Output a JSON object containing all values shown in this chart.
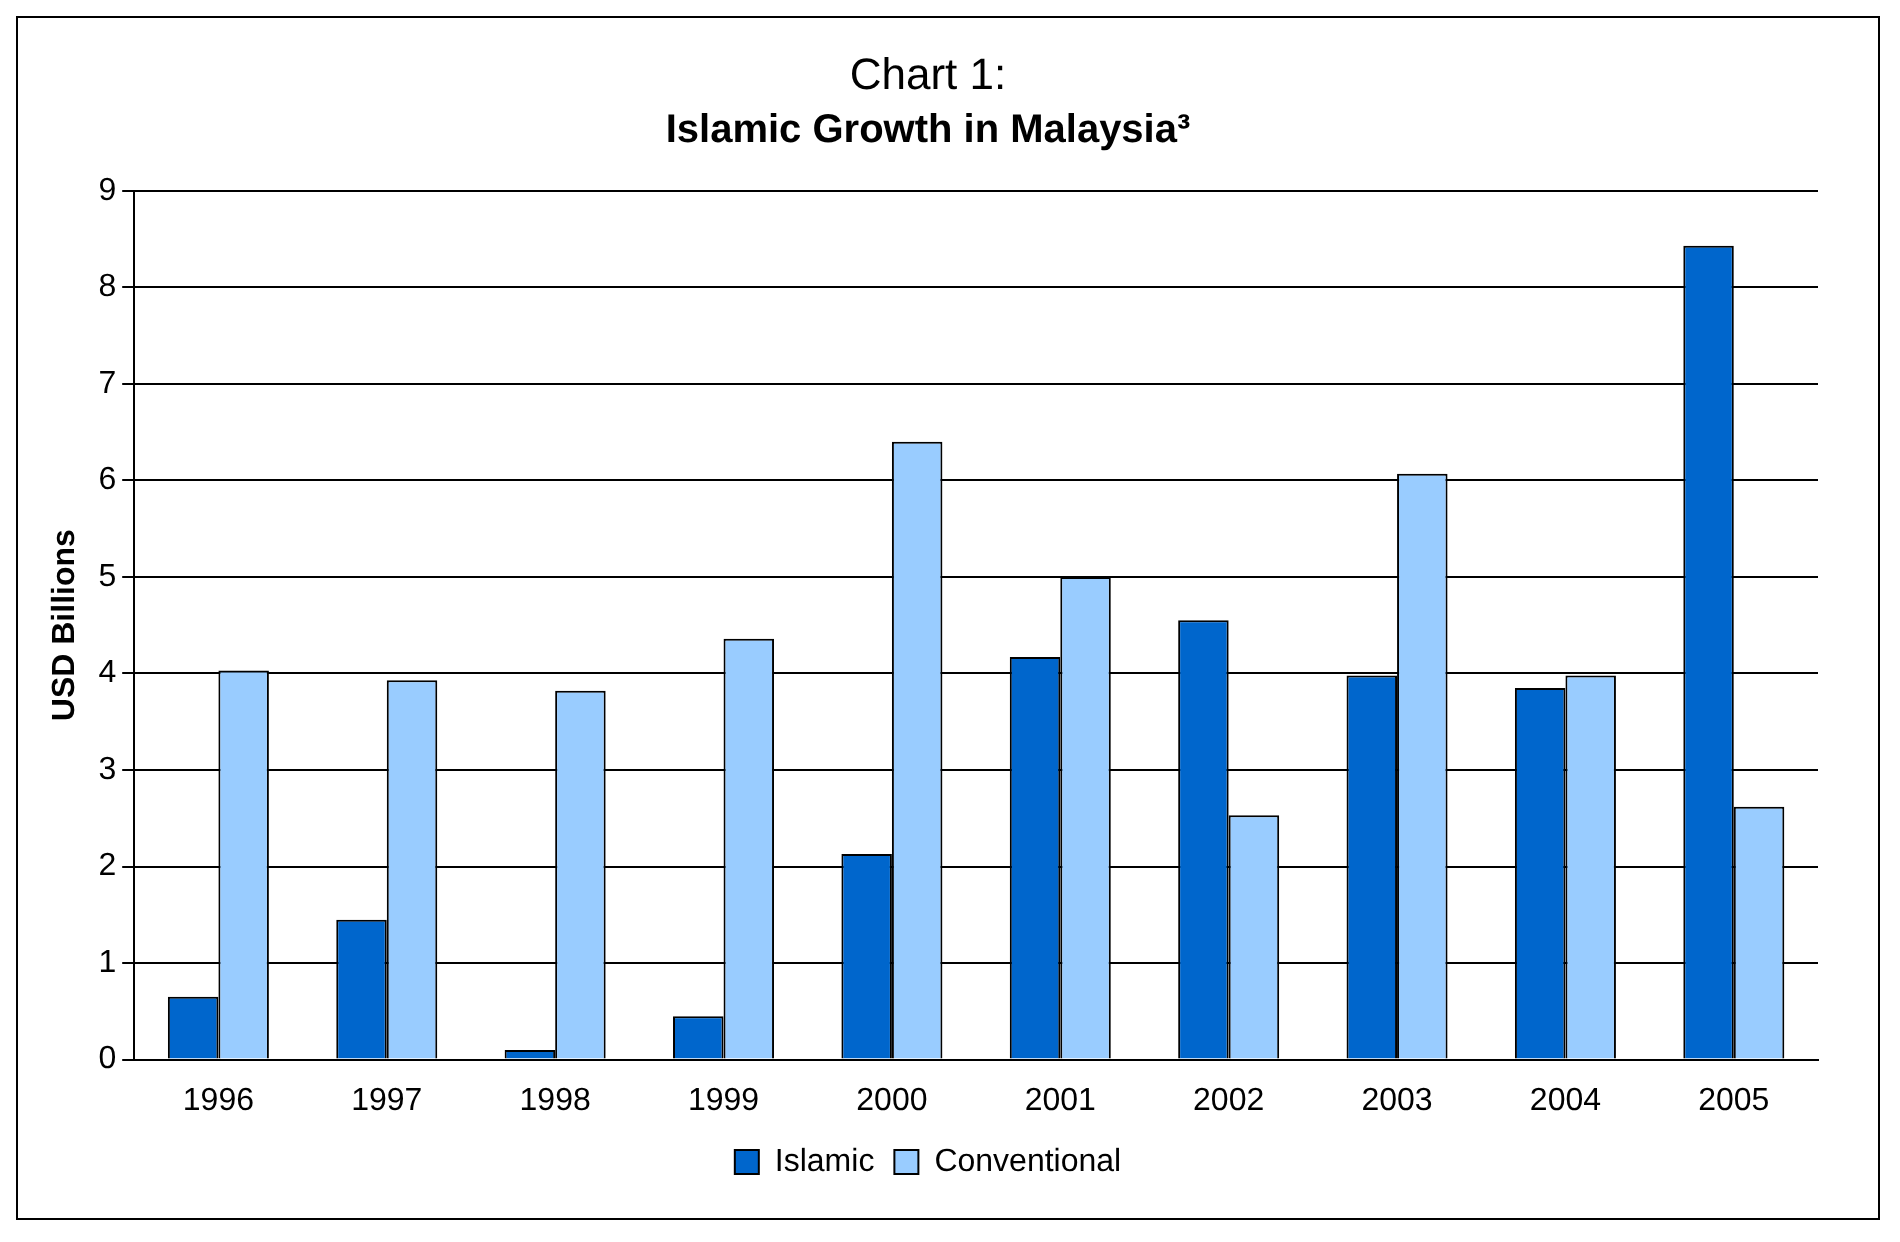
{
  "chart_data": {
    "type": "bar",
    "title": "Chart 1:",
    "subtitle": "Islamic Growth in Malaysia³",
    "ylabel": "USD Billions",
    "categories": [
      "1996",
      "1997",
      "1998",
      "1999",
      "2000",
      "2001",
      "2002",
      "2003",
      "2004",
      "2005"
    ],
    "series": [
      {
        "name": "Islamic",
        "color": "#0066cc",
        "values": [
          0.65,
          1.45,
          0.1,
          0.45,
          2.13,
          4.17,
          4.55,
          3.98,
          3.85,
          8.43
        ]
      },
      {
        "name": "Conventional",
        "color": "#99ccff",
        "values": [
          4.03,
          3.93,
          3.82,
          4.36,
          6.4,
          5.0,
          2.53,
          6.07,
          3.98,
          2.62
        ]
      }
    ],
    "ylim": [
      0,
      9
    ],
    "yticks": [
      0,
      1,
      2,
      3,
      4,
      5,
      6,
      7,
      8,
      9
    ],
    "grid": "y",
    "legend": "bottom"
  }
}
